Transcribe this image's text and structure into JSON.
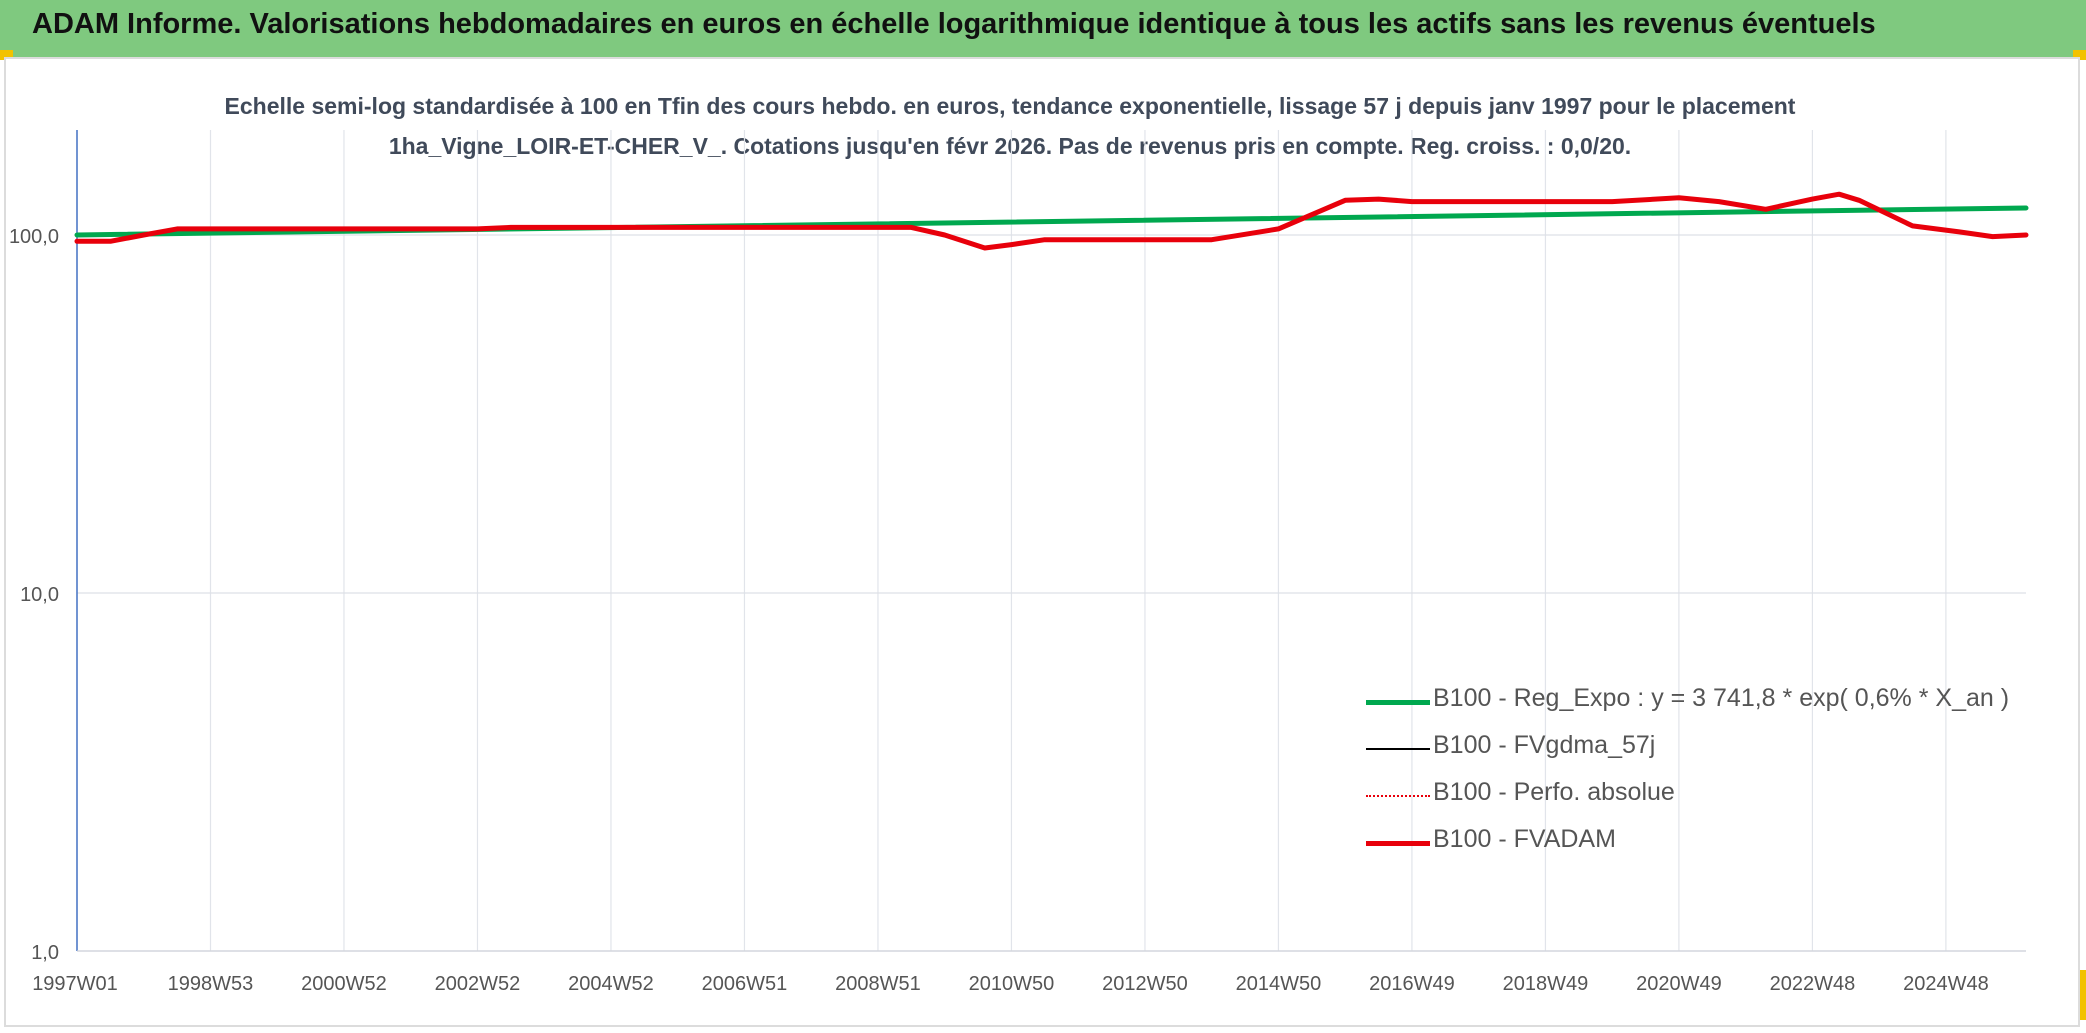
{
  "header": {
    "title": "ADAM Informe. Valorisations hebdomadaires en euros en échelle logarithmique identique à tous les actifs sans les revenus éventuels"
  },
  "chart_data": {
    "type": "line",
    "title": "Echelle semi-log standardisée à 100 en Tfin des cours hebdo. en euros, tendance exponentielle, lissage 57 j depuis janv 1997 pour le placement 1ha_Vigne_LOIR-ET-CHER_V_. Cotations jusqu'en févr 2026. Pas de revenus pris en compte. Reg. croiss. : 0,0/20.",
    "y_scale": "log",
    "ylim": [
      1,
      200
    ],
    "yticks": [
      {
        "value": 1,
        "label": "1,0"
      },
      {
        "value": 10,
        "label": "10,0"
      },
      {
        "value": 100,
        "label": "100,0"
      }
    ],
    "x_range": [
      1997.0,
      2026.2
    ],
    "xticks": [
      {
        "x": 1997.0,
        "label": "1997W01"
      },
      {
        "x": 1999.0,
        "label": "1998W53"
      },
      {
        "x": 2001.0,
        "label": "2000W52"
      },
      {
        "x": 2003.0,
        "label": "2002W52"
      },
      {
        "x": 2005.0,
        "label": "2004W52"
      },
      {
        "x": 2007.0,
        "label": "2006W51"
      },
      {
        "x": 2009.0,
        "label": "2008W51"
      },
      {
        "x": 2011.0,
        "label": "2010W50"
      },
      {
        "x": 2013.0,
        "label": "2012W50"
      },
      {
        "x": 2015.0,
        "label": "2014W50"
      },
      {
        "x": 2017.0,
        "label": "2016W49"
      },
      {
        "x": 2019.0,
        "label": "2018W49"
      },
      {
        "x": 2021.0,
        "label": "2020W49"
      },
      {
        "x": 2023.0,
        "label": "2022W48"
      },
      {
        "x": 2025.0,
        "label": "2024W48"
      }
    ],
    "grid": true,
    "legend_position": "bottom-right",
    "series": [
      {
        "name": "B100 - Reg_Expo : y = 3 741,8 * exp( 0,6% *  X_an )",
        "color": "#00a84f",
        "style": "solid-thick",
        "points": [
          [
            1997.0,
            100
          ],
          [
            2026.2,
            119
          ]
        ]
      },
      {
        "name": "B100 - FVgdma_57j",
        "color": "#000000",
        "style": "solid-thin",
        "points": []
      },
      {
        "name": "B100 - Perfo. absolue",
        "color": "#e8000b",
        "style": "dotted",
        "points": []
      },
      {
        "name": "B100 - FVADAM",
        "color": "#e8000b",
        "style": "solid-thick",
        "points": [
          [
            1997.0,
            96
          ],
          [
            1997.5,
            96
          ],
          [
            1998.0,
            100
          ],
          [
            1998.5,
            104
          ],
          [
            2003.0,
            104
          ],
          [
            2003.5,
            105
          ],
          [
            2008.0,
            105
          ],
          [
            2009.5,
            105
          ],
          [
            2010.0,
            100
          ],
          [
            2010.6,
            92
          ],
          [
            2011.0,
            94
          ],
          [
            2011.5,
            97
          ],
          [
            2013.0,
            97
          ],
          [
            2014.0,
            97
          ],
          [
            2015.0,
            104
          ],
          [
            2016.0,
            125
          ],
          [
            2016.5,
            126
          ],
          [
            2017.0,
            124
          ],
          [
            2020.0,
            124
          ],
          [
            2021.0,
            127
          ],
          [
            2021.6,
            124
          ],
          [
            2022.3,
            118
          ],
          [
            2023.0,
            126
          ],
          [
            2023.4,
            130
          ],
          [
            2023.7,
            125
          ],
          [
            2024.5,
            106
          ],
          [
            2025.2,
            102
          ],
          [
            2025.7,
            99
          ],
          [
            2026.2,
            100
          ]
        ]
      }
    ]
  }
}
